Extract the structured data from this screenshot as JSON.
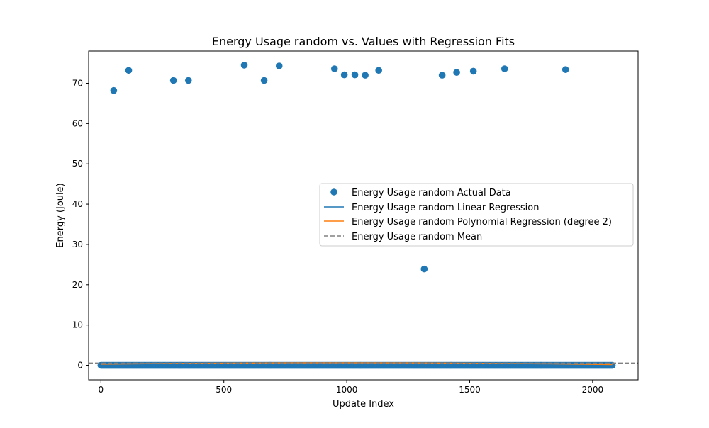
{
  "chart_data": {
    "type": "scatter",
    "title": "Energy Usage random vs. Values with Regression Fits",
    "xlabel": "Update Index",
    "ylabel": "Energy (Joule)",
    "xlim": [
      -50,
      2185
    ],
    "ylim": [
      -3.6,
      78.0
    ],
    "xticks": [
      0,
      500,
      1000,
      1500,
      2000
    ],
    "yticks": [
      0,
      10,
      20,
      30,
      40,
      50,
      60,
      70
    ],
    "grid": false,
    "legend_position": "center-right",
    "series": [
      {
        "name": "Energy Usage random Actual Data",
        "kind": "scatter",
        "color": "#1f77b4",
        "baseline_points": {
          "x_start": 0,
          "x_end": 2080,
          "y": 0.0,
          "note_count": 2081
        },
        "outliers": {
          "x": [
            52,
            113,
            295,
            356,
            583,
            664,
            725,
            950,
            990,
            1033,
            1075,
            1130,
            1315,
            1388,
            1447,
            1515,
            1642,
            1890
          ],
          "y": [
            68.2,
            73.2,
            70.7,
            70.7,
            74.5,
            70.7,
            74.3,
            73.6,
            72.1,
            72.1,
            72.0,
            73.2,
            23.9,
            72.0,
            72.7,
            73.0,
            73.6,
            73.4
          ]
        }
      },
      {
        "name": "Energy Usage random Linear Regression",
        "kind": "line",
        "color": "#1f77b4",
        "x": [
          0,
          2080
        ],
        "y": [
          0.55,
          0.45
        ]
      },
      {
        "name": "Energy Usage random Polynomial Regression (degree 2)",
        "kind": "line",
        "color": "#ff7f0e",
        "x": [
          0,
          260,
          520,
          780,
          1040,
          1300,
          1560,
          1820,
          2080
        ],
        "y": [
          0.3,
          0.45,
          0.56,
          0.62,
          0.63,
          0.59,
          0.5,
          0.37,
          0.18
        ]
      },
      {
        "name": "Energy Usage random Mean",
        "kind": "hline",
        "color": "#808080",
        "y": 0.55
      }
    ]
  }
}
